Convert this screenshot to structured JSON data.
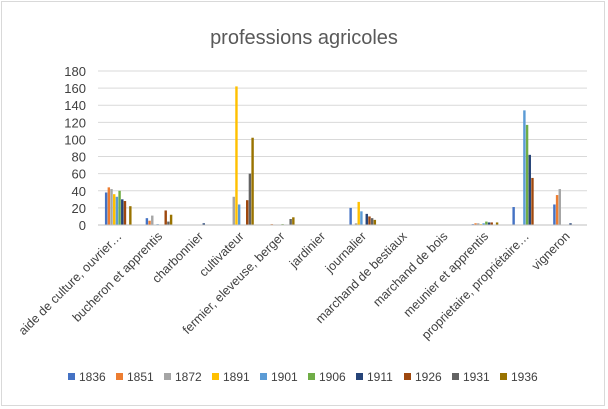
{
  "chart_data": {
    "type": "bar",
    "title": "professions agricoles",
    "xlabel": "",
    "ylabel": "",
    "ylim": [
      0,
      180
    ],
    "yticks": [
      0,
      20,
      40,
      60,
      80,
      100,
      120,
      140,
      160,
      180
    ],
    "grid": true,
    "legend_position": "bottom",
    "categories": [
      "aide de culture, ouvrier…",
      "bucheron et apprentis",
      "charbonnier",
      "cultivateur",
      "fermier, eleveuse, berger",
      "jardinier",
      "journalier",
      "marchand de bestiaux",
      "marchand de bois",
      "meunier et apprentis",
      "proprietaire, propriétaire…",
      "vigneron"
    ],
    "series": [
      {
        "name": "1836",
        "color": "#4472c4",
        "values": [
          38,
          8,
          0,
          0,
          0,
          0,
          20,
          0,
          0,
          1,
          21,
          24
        ]
      },
      {
        "name": "1851",
        "color": "#ed7d31",
        "values": [
          44,
          5,
          0,
          0,
          1,
          0,
          0,
          0,
          0,
          2,
          0,
          35
        ]
      },
      {
        "name": "1872",
        "color": "#a5a5a5",
        "values": [
          42,
          11,
          0,
          33,
          0,
          0,
          2,
          0,
          0,
          2,
          0,
          42
        ]
      },
      {
        "name": "1891",
        "color": "#ffc000",
        "values": [
          36,
          0,
          0,
          162,
          0,
          0,
          27,
          0,
          0,
          1,
          0,
          0
        ]
      },
      {
        "name": "1901",
        "color": "#5b9bd5",
        "values": [
          33,
          1,
          0,
          24,
          0,
          0,
          16,
          0,
          0,
          2,
          134,
          0
        ]
      },
      {
        "name": "1906",
        "color": "#70ad47",
        "values": [
          40,
          0,
          0,
          0,
          1,
          0,
          0,
          0,
          0,
          4,
          117,
          0
        ]
      },
      {
        "name": "1911",
        "color": "#264478",
        "values": [
          30,
          0,
          2,
          0,
          0,
          0,
          13,
          0,
          0,
          3,
          82,
          2
        ]
      },
      {
        "name": "1926",
        "color": "#9e480e",
        "values": [
          28,
          17,
          0,
          29,
          0,
          0,
          10,
          0,
          0,
          3,
          55,
          0
        ]
      },
      {
        "name": "1931",
        "color": "#636363",
        "values": [
          0,
          4,
          0,
          60,
          7,
          0,
          8,
          0,
          0,
          0,
          0,
          0
        ]
      },
      {
        "name": "1936",
        "color": "#997300",
        "values": [
          22,
          12,
          0,
          102,
          9,
          0,
          6,
          0,
          0,
          3,
          0,
          0
        ]
      }
    ]
  }
}
